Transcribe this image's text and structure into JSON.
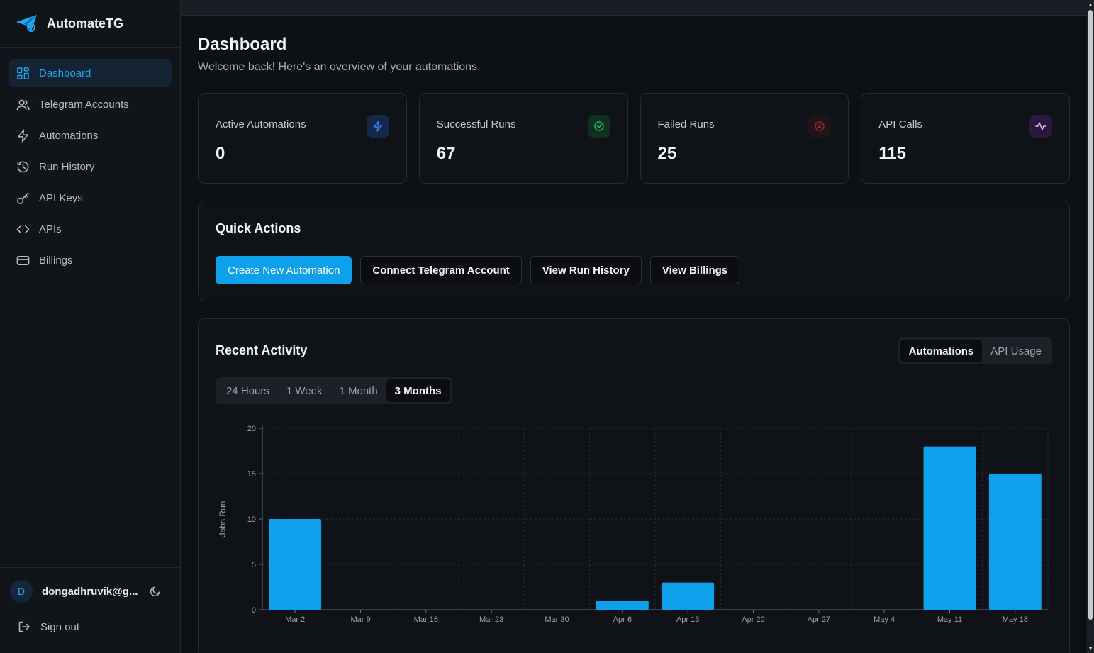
{
  "brand": {
    "name": "AutomateTG"
  },
  "sidebar": {
    "items": [
      {
        "label": "Dashboard",
        "icon": "dashboard-icon",
        "active": true
      },
      {
        "label": "Telegram Accounts",
        "icon": "users-icon"
      },
      {
        "label": "Automations",
        "icon": "lightning-icon"
      },
      {
        "label": "Run History",
        "icon": "history-icon"
      },
      {
        "label": "API Keys",
        "icon": "key-icon"
      },
      {
        "label": "APIs",
        "icon": "code-icon"
      },
      {
        "label": "Billings",
        "icon": "card-icon"
      }
    ],
    "user": {
      "initial": "D",
      "email": "dongadhruvik@g..."
    },
    "signout": "Sign out"
  },
  "header": {
    "title": "Dashboard",
    "subtitle": "Welcome back! Here's an overview of your automations."
  },
  "stats": [
    {
      "label": "Active Automations",
      "value": "0",
      "icon": "lightning-icon",
      "color": "#3b82f6"
    },
    {
      "label": "Successful Runs",
      "value": "67",
      "icon": "check-circle-icon",
      "color": "#22c55e"
    },
    {
      "label": "Failed Runs",
      "value": "25",
      "icon": "x-circle-icon",
      "color": "#dc2626"
    },
    {
      "label": "API Calls",
      "value": "115",
      "icon": "activity-icon",
      "color": "#a855f7"
    }
  ],
  "quick_actions": {
    "title": "Quick Actions",
    "buttons": [
      "Create New Automation",
      "Connect Telegram Account",
      "View Run History",
      "View Billings"
    ]
  },
  "activity": {
    "title": "Recent Activity",
    "type_tabs": [
      "Automations",
      "API Usage"
    ],
    "active_type": "Automations",
    "range_tabs": [
      "24 Hours",
      "1 Week",
      "1 Month",
      "3 Months"
    ],
    "active_range": "3 Months"
  },
  "colors": {
    "accent": "#0ea0ea",
    "background": "#0d1015",
    "bar": "#0ea0ea"
  },
  "chart_data": {
    "type": "bar",
    "categories": [
      "Mar 2",
      "Mar 9",
      "Mar 16",
      "Mar 23",
      "Mar 30",
      "Apr 6",
      "Apr 13",
      "Apr 20",
      "Apr 27",
      "May 4",
      "May 11",
      "May 18"
    ],
    "values": [
      10,
      0,
      0,
      0,
      0,
      1,
      3,
      0,
      0,
      0,
      18,
      15
    ],
    "ylabel": "Jobs Run",
    "ylim": [
      0,
      20
    ],
    "yticks": [
      0,
      5,
      10,
      15,
      20
    ],
    "grid": true
  }
}
